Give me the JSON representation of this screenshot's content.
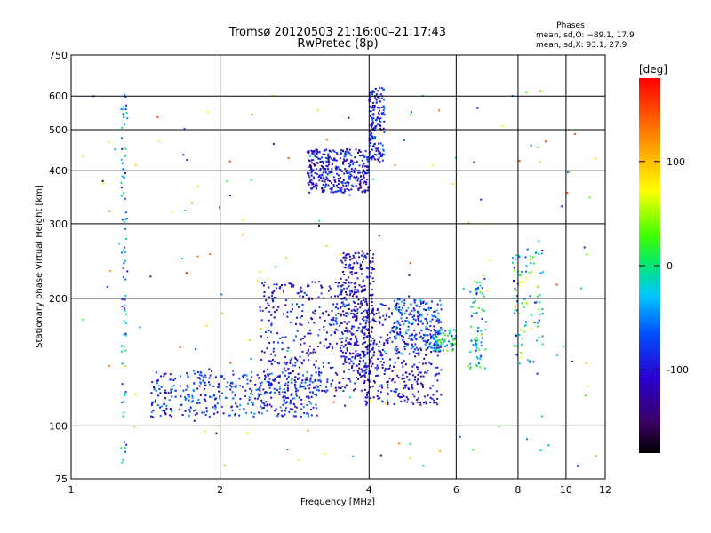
{
  "chart_data": {
    "type": "scatter",
    "title": "Tromsø 20120503 21:16:00–21:17:43",
    "subtitle": "RwPretec (8p)",
    "xlabel": "Frequency [MHz]",
    "ylabel": "Stationary phase Virtual Height [km]",
    "x_scale": "log",
    "y_scale": "log",
    "xlim": [
      1,
      12
    ],
    "ylim": [
      75,
      750
    ],
    "x_ticks": [
      1,
      2,
      4,
      6,
      8,
      10,
      12
    ],
    "y_ticks": [
      75,
      100,
      200,
      300,
      400,
      500,
      600,
      750
    ],
    "grid": true,
    "phases": {
      "header": "Phases",
      "line1": "mean, sd,O: −89.1, 17.9",
      "line2": "mean, sd,X:  93.1, 27.9"
    },
    "colorbar": {
      "label": "[deg]",
      "range": [
        -180,
        180
      ],
      "ticks": [
        100,
        0,
        -100
      ],
      "colormap": "rainbow"
    },
    "clusters": [
      {
        "x": [
          1.45,
          3.2
        ],
        "y": [
          105,
          135
        ],
        "n": 420,
        "phase": [
          -120,
          -40
        ]
      },
      {
        "x": [
          2.4,
          4.0
        ],
        "y": [
          120,
          220
        ],
        "n": 420,
        "phase": [
          -140,
          -60
        ]
      },
      {
        "x": [
          3.5,
          4.1
        ],
        "y": [
          130,
          260
        ],
        "n": 300,
        "phase": [
          -150,
          -70
        ]
      },
      {
        "x": [
          3.9,
          5.6
        ],
        "y": [
          112,
          195
        ],
        "n": 380,
        "phase": [
          -140,
          -70
        ]
      },
      {
        "x": [
          4.5,
          5.6
        ],
        "y": [
          150,
          200
        ],
        "n": 150,
        "phase": [
          -120,
          -20
        ]
      },
      {
        "x": [
          5.4,
          6.0
        ],
        "y": [
          150,
          170
        ],
        "n": 60,
        "phase": [
          -80,
          40
        ]
      },
      {
        "x": [
          3.0,
          4.0
        ],
        "y": [
          355,
          450
        ],
        "n": 380,
        "phase": [
          -140,
          -60
        ]
      },
      {
        "x": [
          4.0,
          4.3
        ],
        "y": [
          420,
          630
        ],
        "n": 160,
        "phase": [
          -130,
          -50
        ]
      },
      {
        "x": [
          6.4,
          6.9
        ],
        "y": [
          135,
          230
        ],
        "n": 70,
        "phase": [
          -90,
          40
        ]
      },
      {
        "x": [
          7.8,
          9.0
        ],
        "y": [
          140,
          265
        ],
        "n": 90,
        "phase": [
          -100,
          80
        ]
      },
      {
        "x": [
          1.26,
          1.3
        ],
        "y": [
          80,
          610
        ],
        "n": 80,
        "phase": [
          -110,
          10
        ]
      },
      {
        "x": [
          1.05,
          11.5
        ],
        "y": [
          80,
          620
        ],
        "n": 180,
        "phase": [
          -160,
          160
        ]
      }
    ]
  }
}
